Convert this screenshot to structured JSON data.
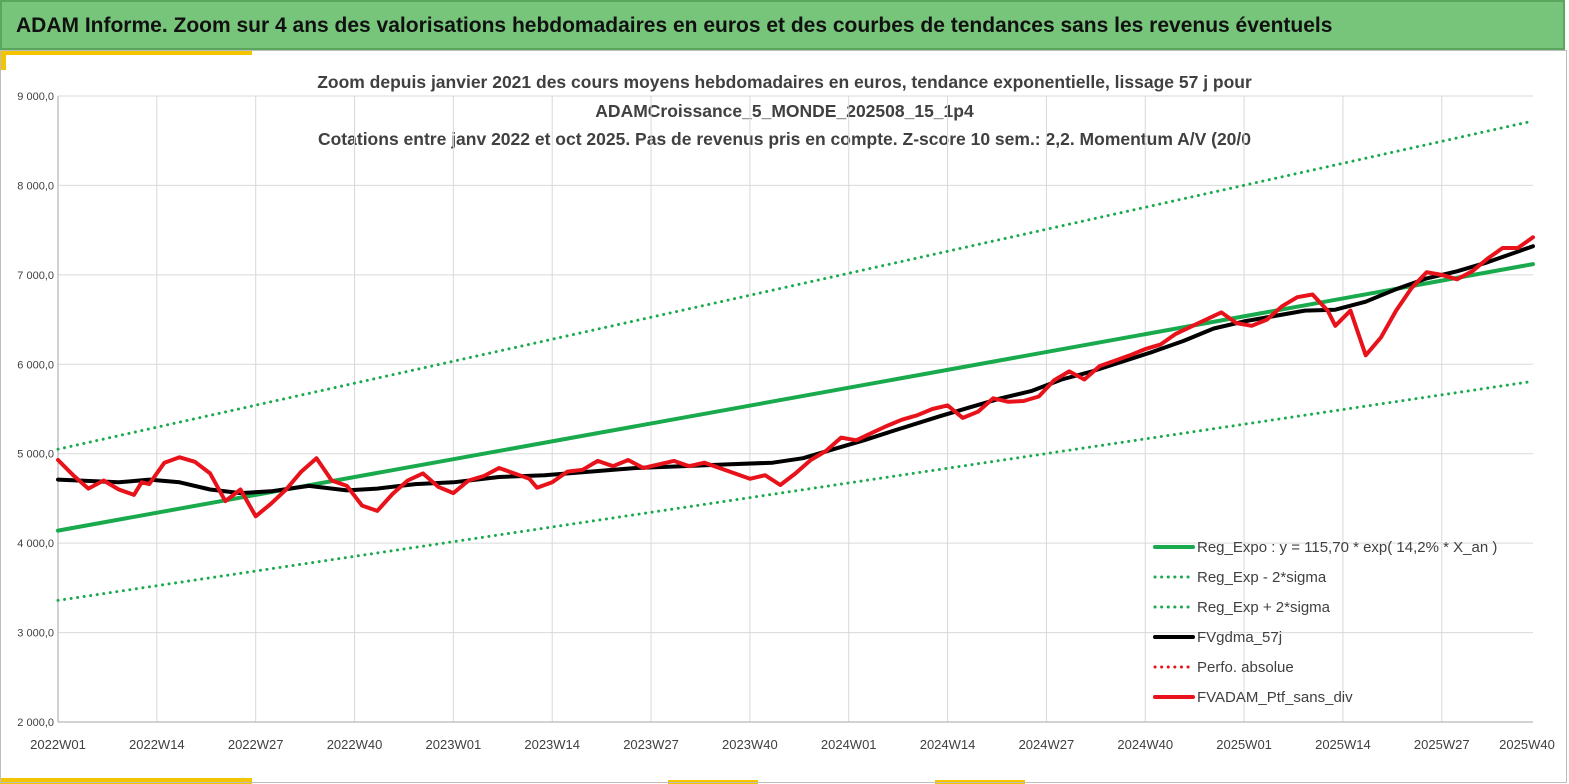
{
  "header": {
    "title": "ADAM Informe. Zoom sur 4 ans des valorisations hebdomadaires en euros et des courbes de tendances sans les revenus éventuels"
  },
  "colors": {
    "header_bg": "#77c57a",
    "accent": "#f3c400",
    "green": "#1aaa4e",
    "black": "#000000",
    "red": "#e8121a",
    "grid": "#d9d9d9"
  },
  "chart_data": {
    "type": "line",
    "title_lines": [
      "Zoom depuis janvier 2021 des cours moyens hebdomadaires  en euros, tendance exponentielle, lissage 57 j pour",
      "ADAMCroissance_5_MONDE_202508_15_1p4",
      "Cotations entre janv 2022 et oct 2025. Pas de revenus pris en compte. Z-score 10 sem.: 2,2. Momentum A/V (20/0"
    ],
    "xlabel": "",
    "ylabel": "",
    "ylim": [
      2000,
      9000
    ],
    "xlim": [
      0,
      194
    ],
    "grid": true,
    "legend_position": "bottom-right",
    "y_ticks": [
      {
        "value": 2000,
        "label": "2 000,0"
      },
      {
        "value": 3000,
        "label": "3 000,0"
      },
      {
        "value": 4000,
        "label": "4 000,0"
      },
      {
        "value": 5000,
        "label": "5 000,0"
      },
      {
        "value": 6000,
        "label": "6 000,0"
      },
      {
        "value": 7000,
        "label": "7 000,0"
      },
      {
        "value": 8000,
        "label": "8 000,0"
      },
      {
        "value": 9000,
        "label": "9 000,0"
      }
    ],
    "x_ticks": [
      {
        "index": 0,
        "label": "2022W01"
      },
      {
        "index": 13,
        "label": "2022W14"
      },
      {
        "index": 26,
        "label": "2022W27"
      },
      {
        "index": 39,
        "label": "2022W40"
      },
      {
        "index": 52,
        "label": "2023W01"
      },
      {
        "index": 65,
        "label": "2023W14"
      },
      {
        "index": 78,
        "label": "2023W27"
      },
      {
        "index": 91,
        "label": "2023W40"
      },
      {
        "index": 104,
        "label": "2024W01"
      },
      {
        "index": 117,
        "label": "2024W14"
      },
      {
        "index": 130,
        "label": "2024W27"
      },
      {
        "index": 143,
        "label": "2024W40"
      },
      {
        "index": 156,
        "label": "2025W01"
      },
      {
        "index": 169,
        "label": "2025W14"
      },
      {
        "index": 182,
        "label": "2025W27"
      },
      {
        "index": 195,
        "label": "2025W40"
      }
    ],
    "series": [
      {
        "name": "Reg_Expo : y = 115,70 * exp( 14,2% *  X_an )",
        "style": "solid-thick",
        "color": "#1aaa4e",
        "points": [
          [
            0,
            4140
          ],
          [
            194,
            7120
          ]
        ]
      },
      {
        "name": "Reg_Exp - 2*sigma",
        "style": "dotted",
        "color": "#1aaa4e",
        "points": [
          [
            0,
            3360
          ],
          [
            194,
            5810
          ]
        ]
      },
      {
        "name": "Reg_Exp + 2*sigma",
        "style": "dotted",
        "color": "#1aaa4e",
        "points": [
          [
            0,
            5050
          ],
          [
            194,
            8720
          ]
        ]
      },
      {
        "name": "FVgdma_57j",
        "style": "solid-thick",
        "color": "#000000",
        "points": [
          [
            0,
            4710
          ],
          [
            8,
            4680
          ],
          [
            12,
            4710
          ],
          [
            16,
            4680
          ],
          [
            20,
            4600
          ],
          [
            24,
            4560
          ],
          [
            28,
            4580
          ],
          [
            33,
            4640
          ],
          [
            38,
            4590
          ],
          [
            42,
            4610
          ],
          [
            47,
            4660
          ],
          [
            52,
            4680
          ],
          [
            58,
            4740
          ],
          [
            64,
            4760
          ],
          [
            70,
            4800
          ],
          [
            76,
            4840
          ],
          [
            82,
            4860
          ],
          [
            88,
            4880
          ],
          [
            94,
            4900
          ],
          [
            98,
            4950
          ],
          [
            102,
            5050
          ],
          [
            106,
            5150
          ],
          [
            110,
            5260
          ],
          [
            116,
            5420
          ],
          [
            120,
            5520
          ],
          [
            124,
            5620
          ],
          [
            128,
            5700
          ],
          [
            132,
            5830
          ],
          [
            136,
            5920
          ],
          [
            140,
            6030
          ],
          [
            144,
            6140
          ],
          [
            148,
            6260
          ],
          [
            152,
            6400
          ],
          [
            156,
            6480
          ],
          [
            160,
            6540
          ],
          [
            164,
            6600
          ],
          [
            168,
            6610
          ],
          [
            172,
            6700
          ],
          [
            176,
            6840
          ],
          [
            180,
            6960
          ],
          [
            184,
            7040
          ],
          [
            188,
            7140
          ],
          [
            192,
            7260
          ],
          [
            194,
            7320
          ]
        ]
      },
      {
        "name": "Perfo. absolue",
        "style": "dotted",
        "color": "#e8121a",
        "points": []
      },
      {
        "name": "FVADAM_Ptf_sans_div",
        "style": "solid-thick",
        "color": "#e8121a",
        "points": [
          [
            0,
            4930
          ],
          [
            2,
            4760
          ],
          [
            4,
            4610
          ],
          [
            6,
            4700
          ],
          [
            8,
            4600
          ],
          [
            10,
            4540
          ],
          [
            11,
            4680
          ],
          [
            12,
            4660
          ],
          [
            14,
            4900
          ],
          [
            16,
            4960
          ],
          [
            18,
            4910
          ],
          [
            20,
            4780
          ],
          [
            22,
            4470
          ],
          [
            24,
            4600
          ],
          [
            26,
            4300
          ],
          [
            28,
            4440
          ],
          [
            30,
            4600
          ],
          [
            32,
            4800
          ],
          [
            34,
            4950
          ],
          [
            36,
            4700
          ],
          [
            38,
            4640
          ],
          [
            40,
            4420
          ],
          [
            42,
            4360
          ],
          [
            44,
            4550
          ],
          [
            46,
            4700
          ],
          [
            48,
            4780
          ],
          [
            50,
            4630
          ],
          [
            52,
            4560
          ],
          [
            54,
            4700
          ],
          [
            56,
            4750
          ],
          [
            58,
            4840
          ],
          [
            60,
            4780
          ],
          [
            62,
            4720
          ],
          [
            63,
            4620
          ],
          [
            65,
            4680
          ],
          [
            67,
            4800
          ],
          [
            69,
            4820
          ],
          [
            71,
            4920
          ],
          [
            73,
            4860
          ],
          [
            75,
            4930
          ],
          [
            77,
            4840
          ],
          [
            79,
            4880
          ],
          [
            81,
            4920
          ],
          [
            83,
            4860
          ],
          [
            85,
            4900
          ],
          [
            87,
            4840
          ],
          [
            89,
            4780
          ],
          [
            91,
            4720
          ],
          [
            93,
            4760
          ],
          [
            95,
            4650
          ],
          [
            97,
            4780
          ],
          [
            99,
            4930
          ],
          [
            101,
            5030
          ],
          [
            103,
            5180
          ],
          [
            105,
            5150
          ],
          [
            107,
            5230
          ],
          [
            109,
            5310
          ],
          [
            111,
            5380
          ],
          [
            113,
            5430
          ],
          [
            115,
            5500
          ],
          [
            117,
            5540
          ],
          [
            119,
            5400
          ],
          [
            121,
            5470
          ],
          [
            123,
            5620
          ],
          [
            125,
            5580
          ],
          [
            127,
            5590
          ],
          [
            129,
            5640
          ],
          [
            131,
            5820
          ],
          [
            133,
            5920
          ],
          [
            135,
            5830
          ],
          [
            137,
            5980
          ],
          [
            139,
            6040
          ],
          [
            141,
            6100
          ],
          [
            143,
            6170
          ],
          [
            145,
            6220
          ],
          [
            147,
            6340
          ],
          [
            149,
            6420
          ],
          [
            151,
            6500
          ],
          [
            153,
            6580
          ],
          [
            155,
            6460
          ],
          [
            157,
            6430
          ],
          [
            159,
            6500
          ],
          [
            161,
            6650
          ],
          [
            163,
            6750
          ],
          [
            165,
            6780
          ],
          [
            167,
            6600
          ],
          [
            168,
            6430
          ],
          [
            170,
            6600
          ],
          [
            171,
            6350
          ],
          [
            172,
            6100
          ],
          [
            174,
            6300
          ],
          [
            176,
            6600
          ],
          [
            178,
            6850
          ],
          [
            180,
            7030
          ],
          [
            182,
            7000
          ],
          [
            184,
            6950
          ],
          [
            186,
            7040
          ],
          [
            188,
            7180
          ],
          [
            190,
            7300
          ],
          [
            192,
            7300
          ],
          [
            194,
            7420
          ]
        ]
      }
    ]
  }
}
